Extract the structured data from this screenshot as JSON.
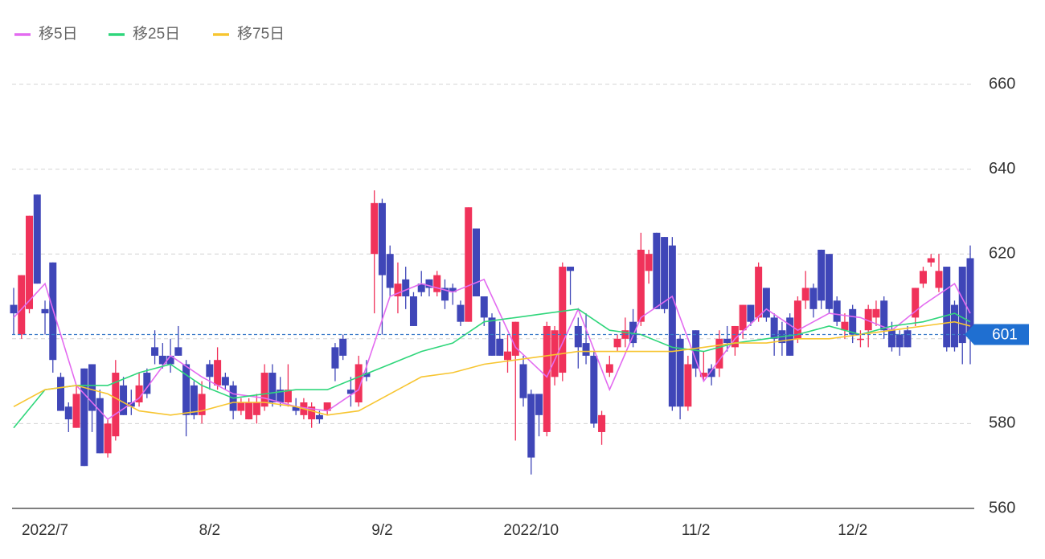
{
  "chart_data": {
    "type": "candlestick",
    "up_color": "#f0325a",
    "down_color": "#3f46b8",
    "open": [
      608,
      601,
      607,
      634,
      607,
      618,
      591,
      584,
      579,
      593,
      594,
      586,
      573,
      577,
      589,
      585,
      585,
      592,
      598,
      596,
      596,
      598,
      594,
      589,
      582,
      594,
      589,
      591,
      589,
      583,
      581,
      582,
      584,
      592,
      588,
      585,
      584,
      582,
      581,
      582,
      583,
      598,
      600,
      588,
      585,
      592,
      620,
      632,
      620,
      610,
      614,
      610,
      613,
      614,
      611,
      612,
      612,
      608,
      604,
      626,
      610,
      605,
      600,
      595,
      596,
      594,
      587,
      587,
      578,
      591,
      592,
      617,
      603,
      599,
      596,
      578,
      592,
      598,
      600,
      604,
      604,
      616,
      625,
      624,
      622,
      600,
      584,
      602,
      591,
      593,
      593,
      600,
      598,
      602,
      608,
      605,
      612,
      605,
      602,
      605,
      600,
      609,
      612,
      621,
      620,
      609,
      602,
      607,
      600,
      602,
      605,
      609,
      602,
      601,
      602,
      605,
      613,
      618,
      612,
      617,
      608,
      617,
      619
    ],
    "high": [
      612,
      615,
      629,
      634,
      609,
      618,
      592,
      585,
      589,
      593,
      594,
      588,
      581,
      595,
      591,
      588,
      592,
      593,
      602,
      599,
      600,
      603,
      595,
      590,
      590,
      595,
      598,
      592,
      590,
      586,
      586,
      587,
      594,
      594,
      591,
      594,
      586,
      586,
      585,
      583,
      585,
      599,
      601,
      591,
      596,
      595,
      635,
      633,
      622,
      618,
      617,
      611,
      616,
      614,
      616,
      614,
      613,
      609,
      631,
      626,
      610,
      606,
      604,
      601,
      604,
      596,
      588,
      587,
      604,
      603,
      618,
      617,
      605,
      606,
      597,
      583,
      596,
      601,
      605,
      607,
      625,
      621,
      625,
      624,
      624,
      601,
      596,
      602,
      597,
      594,
      602,
      603,
      603,
      608,
      608,
      618,
      612,
      606,
      604,
      606,
      610,
      616,
      613,
      621,
      620,
      610,
      606,
      608,
      602,
      608,
      609,
      610,
      604,
      602,
      603,
      612,
      617,
      620,
      620,
      617,
      609,
      617,
      622
    ],
    "low": [
      601,
      600,
      606,
      613,
      601,
      592,
      583,
      578,
      579,
      570,
      578,
      573,
      572,
      576,
      582,
      582,
      584,
      586,
      594,
      593,
      592,
      596,
      577,
      581,
      580,
      588,
      588,
      588,
      581,
      582,
      581,
      580,
      583,
      584,
      584,
      584,
      582,
      581,
      579,
      580,
      582,
      590,
      595,
      584,
      584,
      590,
      606,
      601,
      610,
      606,
      607,
      603,
      610,
      610,
      610,
      607,
      608,
      603,
      604,
      610,
      603,
      596,
      596,
      592,
      576,
      584,
      568,
      577,
      577,
      589,
      590,
      608,
      593,
      594,
      579,
      575,
      591,
      597,
      598,
      598,
      603,
      613,
      607,
      606,
      583,
      581,
      583,
      591,
      590,
      589,
      591,
      597,
      596,
      600,
      603,
      604,
      604,
      596,
      596,
      596,
      599,
      607,
      605,
      607,
      606,
      603,
      600,
      599,
      598,
      598,
      603,
      600,
      597,
      596,
      598,
      603,
      612,
      617,
      611,
      597,
      597,
      594,
      594
    ],
    "close": [
      606,
      615,
      629,
      613,
      606,
      595,
      583,
      581,
      587,
      570,
      583,
      573,
      580,
      592,
      582,
      584,
      589,
      587,
      596,
      594,
      594,
      596,
      582,
      582,
      587,
      591,
      595,
      589,
      583,
      585,
      585,
      585,
      592,
      585,
      585,
      588,
      583,
      585,
      584,
      581,
      585,
      593,
      596,
      587,
      594,
      591,
      632,
      615,
      612,
      613,
      610,
      603,
      611,
      612,
      615,
      609,
      611,
      604,
      631,
      610,
      605,
      596,
      596,
      597,
      604,
      586,
      572,
      582,
      603,
      602,
      617,
      616,
      598,
      596,
      580,
      582,
      594,
      600,
      602,
      599,
      621,
      620,
      607,
      607,
      584,
      584,
      594,
      593,
      592,
      591,
      600,
      599,
      603,
      608,
      604,
      617,
      605,
      600,
      599,
      596,
      609,
      612,
      607,
      609,
      607,
      604,
      604,
      601,
      600,
      607,
      607,
      602,
      598,
      598,
      598,
      612,
      616,
      619,
      616,
      598,
      598,
      599,
      601
    ],
    "ma_x": [
      0,
      4,
      8,
      12,
      16,
      20,
      24,
      28,
      32,
      36,
      40,
      44,
      48,
      52,
      56,
      60,
      64,
      68,
      72,
      76,
      80,
      84,
      88,
      92,
      96,
      100,
      104,
      108,
      112,
      116,
      120,
      122
    ],
    "series": [
      {
        "name": "移5日",
        "color": "#e36bf0",
        "values": [
          605,
          613,
          589,
          581,
          586,
          596,
          591,
          587,
          586,
          584,
          583,
          588,
          610,
          613,
          611,
          614,
          598,
          591,
          607,
          588,
          605,
          610,
          590,
          600,
          607,
          602,
          606,
          605,
          602,
          608,
          613,
          606
        ]
      },
      {
        "name": "移25日",
        "color": "#2fd67b",
        "values": [
          579,
          588,
          589,
          589,
          592,
          594,
          589,
          586,
          587,
          588,
          588,
          591,
          594,
          597,
          599,
          604,
          605,
          606,
          607,
          602,
          601,
          598,
          597,
          599,
          600,
          601,
          603,
          601,
          603,
          604,
          606,
          604
        ]
      },
      {
        "name": "移75日",
        "color": "#f7c531",
        "values": [
          584,
          588,
          589,
          587,
          583,
          582,
          583,
          585,
          585,
          584,
          582,
          583,
          587,
          591,
          592,
          594,
          595,
          596,
          597,
          597,
          597,
          597,
          598,
          599,
          599,
          600,
          600,
          601,
          602,
          603,
          604,
          603
        ]
      }
    ],
    "last_price": 601,
    "ylim": [
      560,
      660
    ],
    "yticks": [
      560,
      580,
      600,
      620,
      640,
      660
    ],
    "xticks": [
      {
        "value": 4,
        "label": "2022/7"
      },
      {
        "value": 25,
        "label": "8/2"
      },
      {
        "value": 47,
        "label": "9/2"
      },
      {
        "value": 66,
        "label": "2022/10"
      },
      {
        "value": 87,
        "label": "11/2"
      },
      {
        "value": 107,
        "label": "12/2"
      }
    ],
    "grid": true
  }
}
